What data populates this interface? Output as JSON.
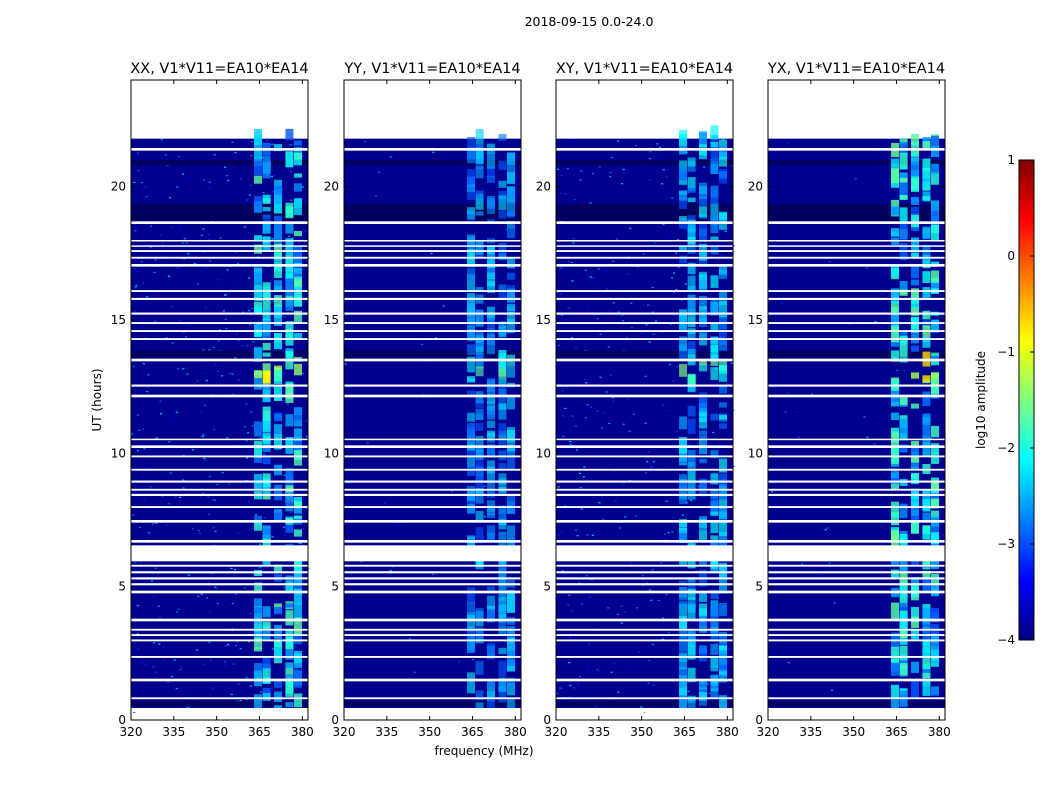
{
  "chart_data": {
    "type": "heatmap",
    "suptitle": "2018-09-15 0.0-24.0",
    "xlabel": "frequency (MHz)",
    "ylabel": "UT (hours)",
    "xlim": [
      320,
      382
    ],
    "ylim": [
      0,
      24
    ],
    "xticks": [
      320,
      335,
      350,
      365,
      380
    ],
    "yticks": [
      0,
      5,
      10,
      15,
      20
    ],
    "panels": [
      {
        "title": "XX, V1*V11=EA10*EA14",
        "background_level": 0.55,
        "rfi_level": 0.9
      },
      {
        "title": "YY, V1*V11=EA10*EA14",
        "background_level": 0.05,
        "rfi_level": 0.55
      },
      {
        "title": "XY, V1*V11=EA10*EA14",
        "background_level": 0.45,
        "rfi_level": 0.65
      },
      {
        "title": "YX, V1*V11=EA10*EA14",
        "background_level": 0.05,
        "rfi_level": 0.95
      }
    ],
    "rfi_band_mhz": [
      363,
      380
    ],
    "rfi_channel_centres_mhz": [
      364.5,
      367.5,
      371.5,
      375.5,
      378.5
    ],
    "colorbar": {
      "label": "log10 amplitude",
      "range": [
        -4,
        1
      ],
      "ticks": [
        "1",
        "0",
        "−1",
        "−2",
        "−3",
        "−4"
      ],
      "colormap": "jet",
      "colors": [
        "#00007f",
        "#0000ff",
        "#007fff",
        "#00ffff",
        "#7fff7f",
        "#ffff00",
        "#ff7f00",
        "#ff0000",
        "#7f0000"
      ]
    },
    "data_time_range_hours": [
      0.3,
      21.8
    ],
    "flagged_gaps_hours": [
      [
        0.3,
        0.45
      ],
      [
        0.78,
        0.85
      ],
      [
        1.45,
        1.55
      ],
      [
        2.33,
        2.4
      ],
      [
        2.95,
        3.02
      ],
      [
        3.15,
        3.22
      ],
      [
        3.35,
        3.42
      ],
      [
        3.7,
        3.8
      ],
      [
        4.75,
        4.85
      ],
      [
        5.05,
        5.13
      ],
      [
        5.27,
        5.35
      ],
      [
        5.5,
        5.58
      ],
      [
        5.75,
        5.82
      ],
      [
        5.95,
        6.55
      ],
      [
        6.65,
        6.75
      ],
      [
        7.4,
        7.5
      ],
      [
        7.95,
        8.02
      ],
      [
        8.4,
        8.48
      ],
      [
        8.6,
        8.67
      ],
      [
        8.9,
        8.98
      ],
      [
        9.35,
        9.42
      ],
      [
        9.85,
        9.92
      ],
      [
        10.2,
        10.3
      ],
      [
        10.5,
        10.55
      ],
      [
        12.1,
        12.2
      ],
      [
        12.5,
        12.58
      ],
      [
        13.45,
        13.55
      ],
      [
        14.25,
        14.32
      ],
      [
        14.55,
        14.62
      ],
      [
        14.85,
        14.92
      ],
      [
        15.2,
        15.28
      ],
      [
        15.75,
        15.83
      ],
      [
        16.05,
        16.12
      ],
      [
        17.0,
        17.1
      ],
      [
        17.3,
        17.37
      ],
      [
        17.55,
        17.62
      ],
      [
        17.75,
        17.8
      ],
      [
        17.95,
        18.0
      ],
      [
        18.6,
        18.7
      ],
      [
        21.35,
        21.45
      ]
    ],
    "dark_bands_hours": [
      [
        0.52,
        0.7
      ],
      [
        13.6,
        13.85
      ],
      [
        18.72,
        19.35
      ],
      [
        20.8,
        21.0
      ]
    ]
  }
}
